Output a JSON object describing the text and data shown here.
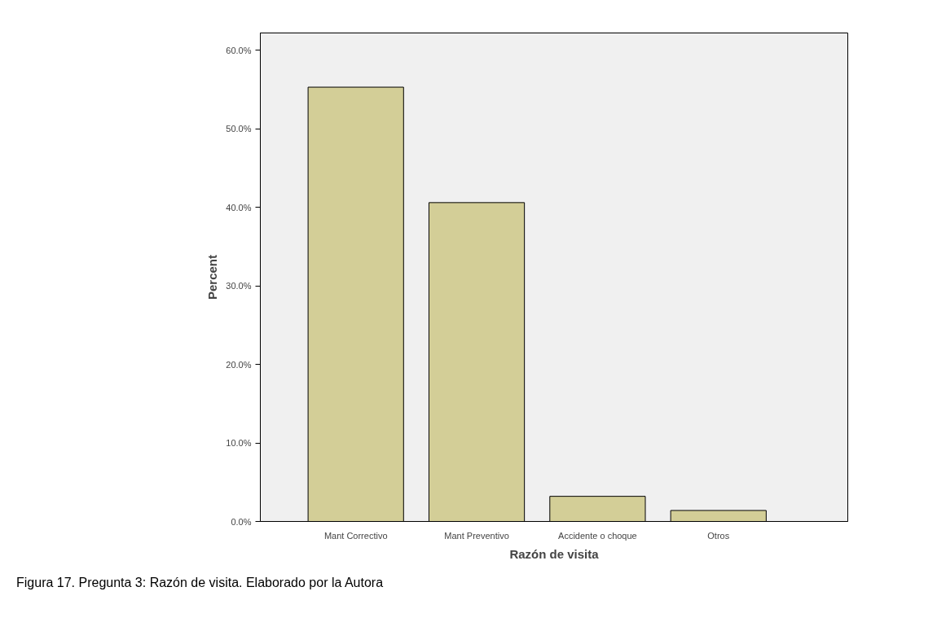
{
  "chart_data": {
    "type": "bar",
    "xlabel": "Razón de visita",
    "ylabel": "Percent",
    "categories": [
      "Mant Correctivo",
      "Mant Preventivo",
      "Accidente o choque",
      "Otros"
    ],
    "values": [
      55.3,
      40.6,
      3.2,
      1.4
    ],
    "color": "#d3ce97",
    "ylim": [
      0,
      62.2
    ],
    "yticks": [
      {
        "value": 0,
        "label": "0.0%"
      },
      {
        "value": 10,
        "label": "10.0%"
      },
      {
        "value": 20,
        "label": "20.0%"
      },
      {
        "value": 30,
        "label": "30.0%"
      },
      {
        "value": 40,
        "label": "40.0%"
      },
      {
        "value": 50,
        "label": "50.0%"
      },
      {
        "value": 60,
        "label": "60.0%"
      }
    ],
    "grid": false,
    "annotations": [
      "Figura 17. Pregunta 3: Razón de visita. Elaborado por la Autora"
    ]
  }
}
